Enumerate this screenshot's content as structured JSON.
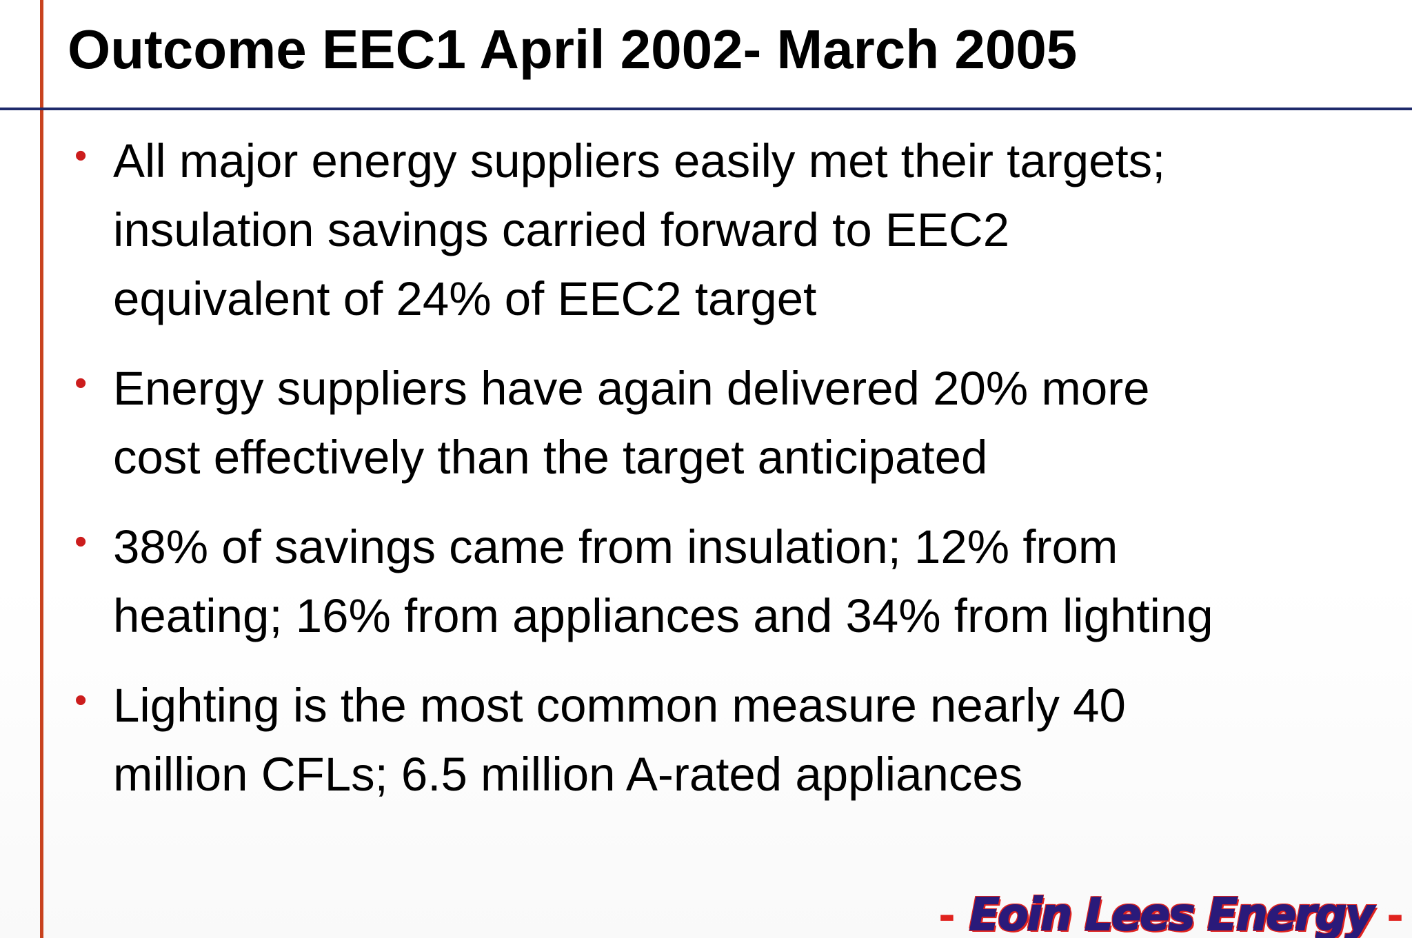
{
  "slide": {
    "title": "Outcome EEC1 April 2002- March 2005",
    "bullet_symbol": "•",
    "bullets": [
      {
        "lines": [
          "All major energy suppliers easily met their targets;",
          "insulation savings carried forward to EEC2",
          "equivalent of 24% of EEC2 target"
        ]
      },
      {
        "lines": [
          "Energy suppliers have again delivered 20% more",
          "cost effectively than the target anticipated"
        ]
      },
      {
        "lines": [
          "38% of savings came from insulation; 12% from",
          "heating; 16% from appliances and 34% from lighting"
        ]
      },
      {
        "lines": [
          "Lighting is the most common measure nearly 40",
          "million CFLs; 6.5 million A-rated appliances"
        ]
      }
    ],
    "logo": {
      "dash_left": "-",
      "text": "Eoin Lees Energy",
      "dash_right": "-"
    }
  },
  "colors": {
    "title_text": "#000000",
    "body_text": "#000000",
    "bullet_dot": "#cc1d1d",
    "vertical_rule": "#c8421e",
    "horizontal_rule": "#1f2a6b",
    "logo_text": "#2a1a7a",
    "logo_accent": "#e0221e"
  }
}
